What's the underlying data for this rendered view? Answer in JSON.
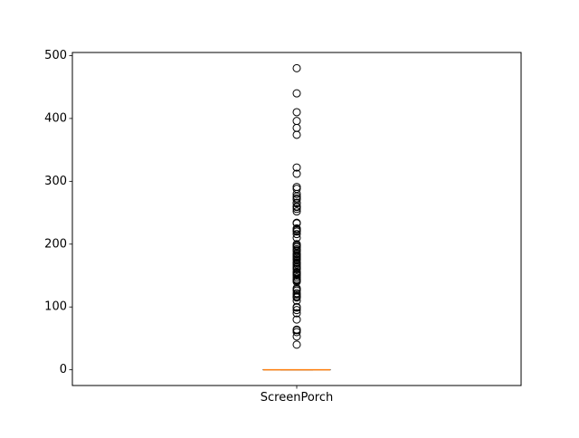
{
  "chart_data": {
    "type": "boxplot",
    "categories": [
      "ScreenPorch"
    ],
    "series": [
      {
        "name": "ScreenPorch",
        "box": {
          "min": 0,
          "q1": 0,
          "median": 0,
          "q3": 0,
          "max": 0
        },
        "outliers": [
          480,
          440,
          410,
          396,
          385,
          374,
          322,
          312,
          291,
          288,
          280,
          276,
          273,
          271,
          266,
          265,
          260,
          259,
          256,
          252,
          234,
          233,
          225,
          224,
          222,
          220,
          216,
          210,
          200,
          198,
          197,
          195,
          192,
          190,
          189,
          185,
          184,
          182,
          180,
          178,
          176,
          175,
          171,
          170,
          168,
          165,
          163,
          161,
          160,
          156,
          155,
          153,
          152,
          150,
          147,
          144,
          143,
          142,
          140,
          130,
          128,
          126,
          122,
          120,
          117,
          116,
          115,
          110,
          100,
          99,
          95,
          90,
          80,
          64,
          63,
          60,
          53,
          40
        ]
      }
    ],
    "ylim": [
      -25,
      505
    ],
    "yticks": [
      "0",
      "100",
      "200",
      "300",
      "400",
      "500"
    ],
    "xlabel": "",
    "ylabel": "",
    "title": "",
    "grid": false,
    "legend": "none",
    "colors": {
      "box": "#000000",
      "median": "#ff7f0e",
      "outlier_edge": "#000000",
      "axes": "#000000",
      "background": "#ffffff"
    }
  }
}
